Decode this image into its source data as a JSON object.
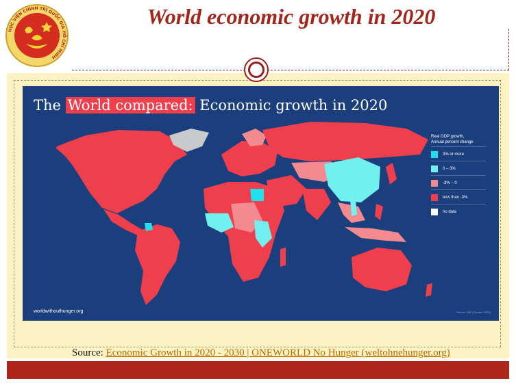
{
  "slide": {
    "title": "World economic growth in 2020",
    "source_prefix": "Source: ",
    "source_link": "Economic Growth in 2020 - 2030 | ONEWORLD No Hunger (weltohnehunger.org)"
  },
  "logo": {
    "ring_text": "HỌC VIỆN CHÍNH TRỊ QUỐC GIA HỒ CHÍ MINH",
    "colors": {
      "ring": "#c9a227",
      "field": "#d42c1e"
    }
  },
  "map": {
    "title_plain_before": "The ",
    "title_highlight": "World compared:",
    "title_plain_after": " Economic growth in 2020",
    "watermark": "worldwithouthunger.org",
    "credit": "Source: IMF (October 2020)",
    "legend_title_line1": "Real GDP growth,",
    "legend_title_line2": "Annual percent change",
    "legend": [
      {
        "label": "3% or more",
        "color": "#1ee0ef"
      },
      {
        "label": "0 – 3%",
        "color": "#72f0f0"
      },
      {
        "label": "-3% – 0",
        "color": "#f28a8f"
      },
      {
        "label": "less than -3%",
        "color": "#ef3f4c"
      },
      {
        "label": "no data",
        "color": "#ffffff"
      }
    ],
    "colors": {
      "ocean": "#1b3f7d",
      "no_data_land": "#c9cacc"
    }
  }
}
